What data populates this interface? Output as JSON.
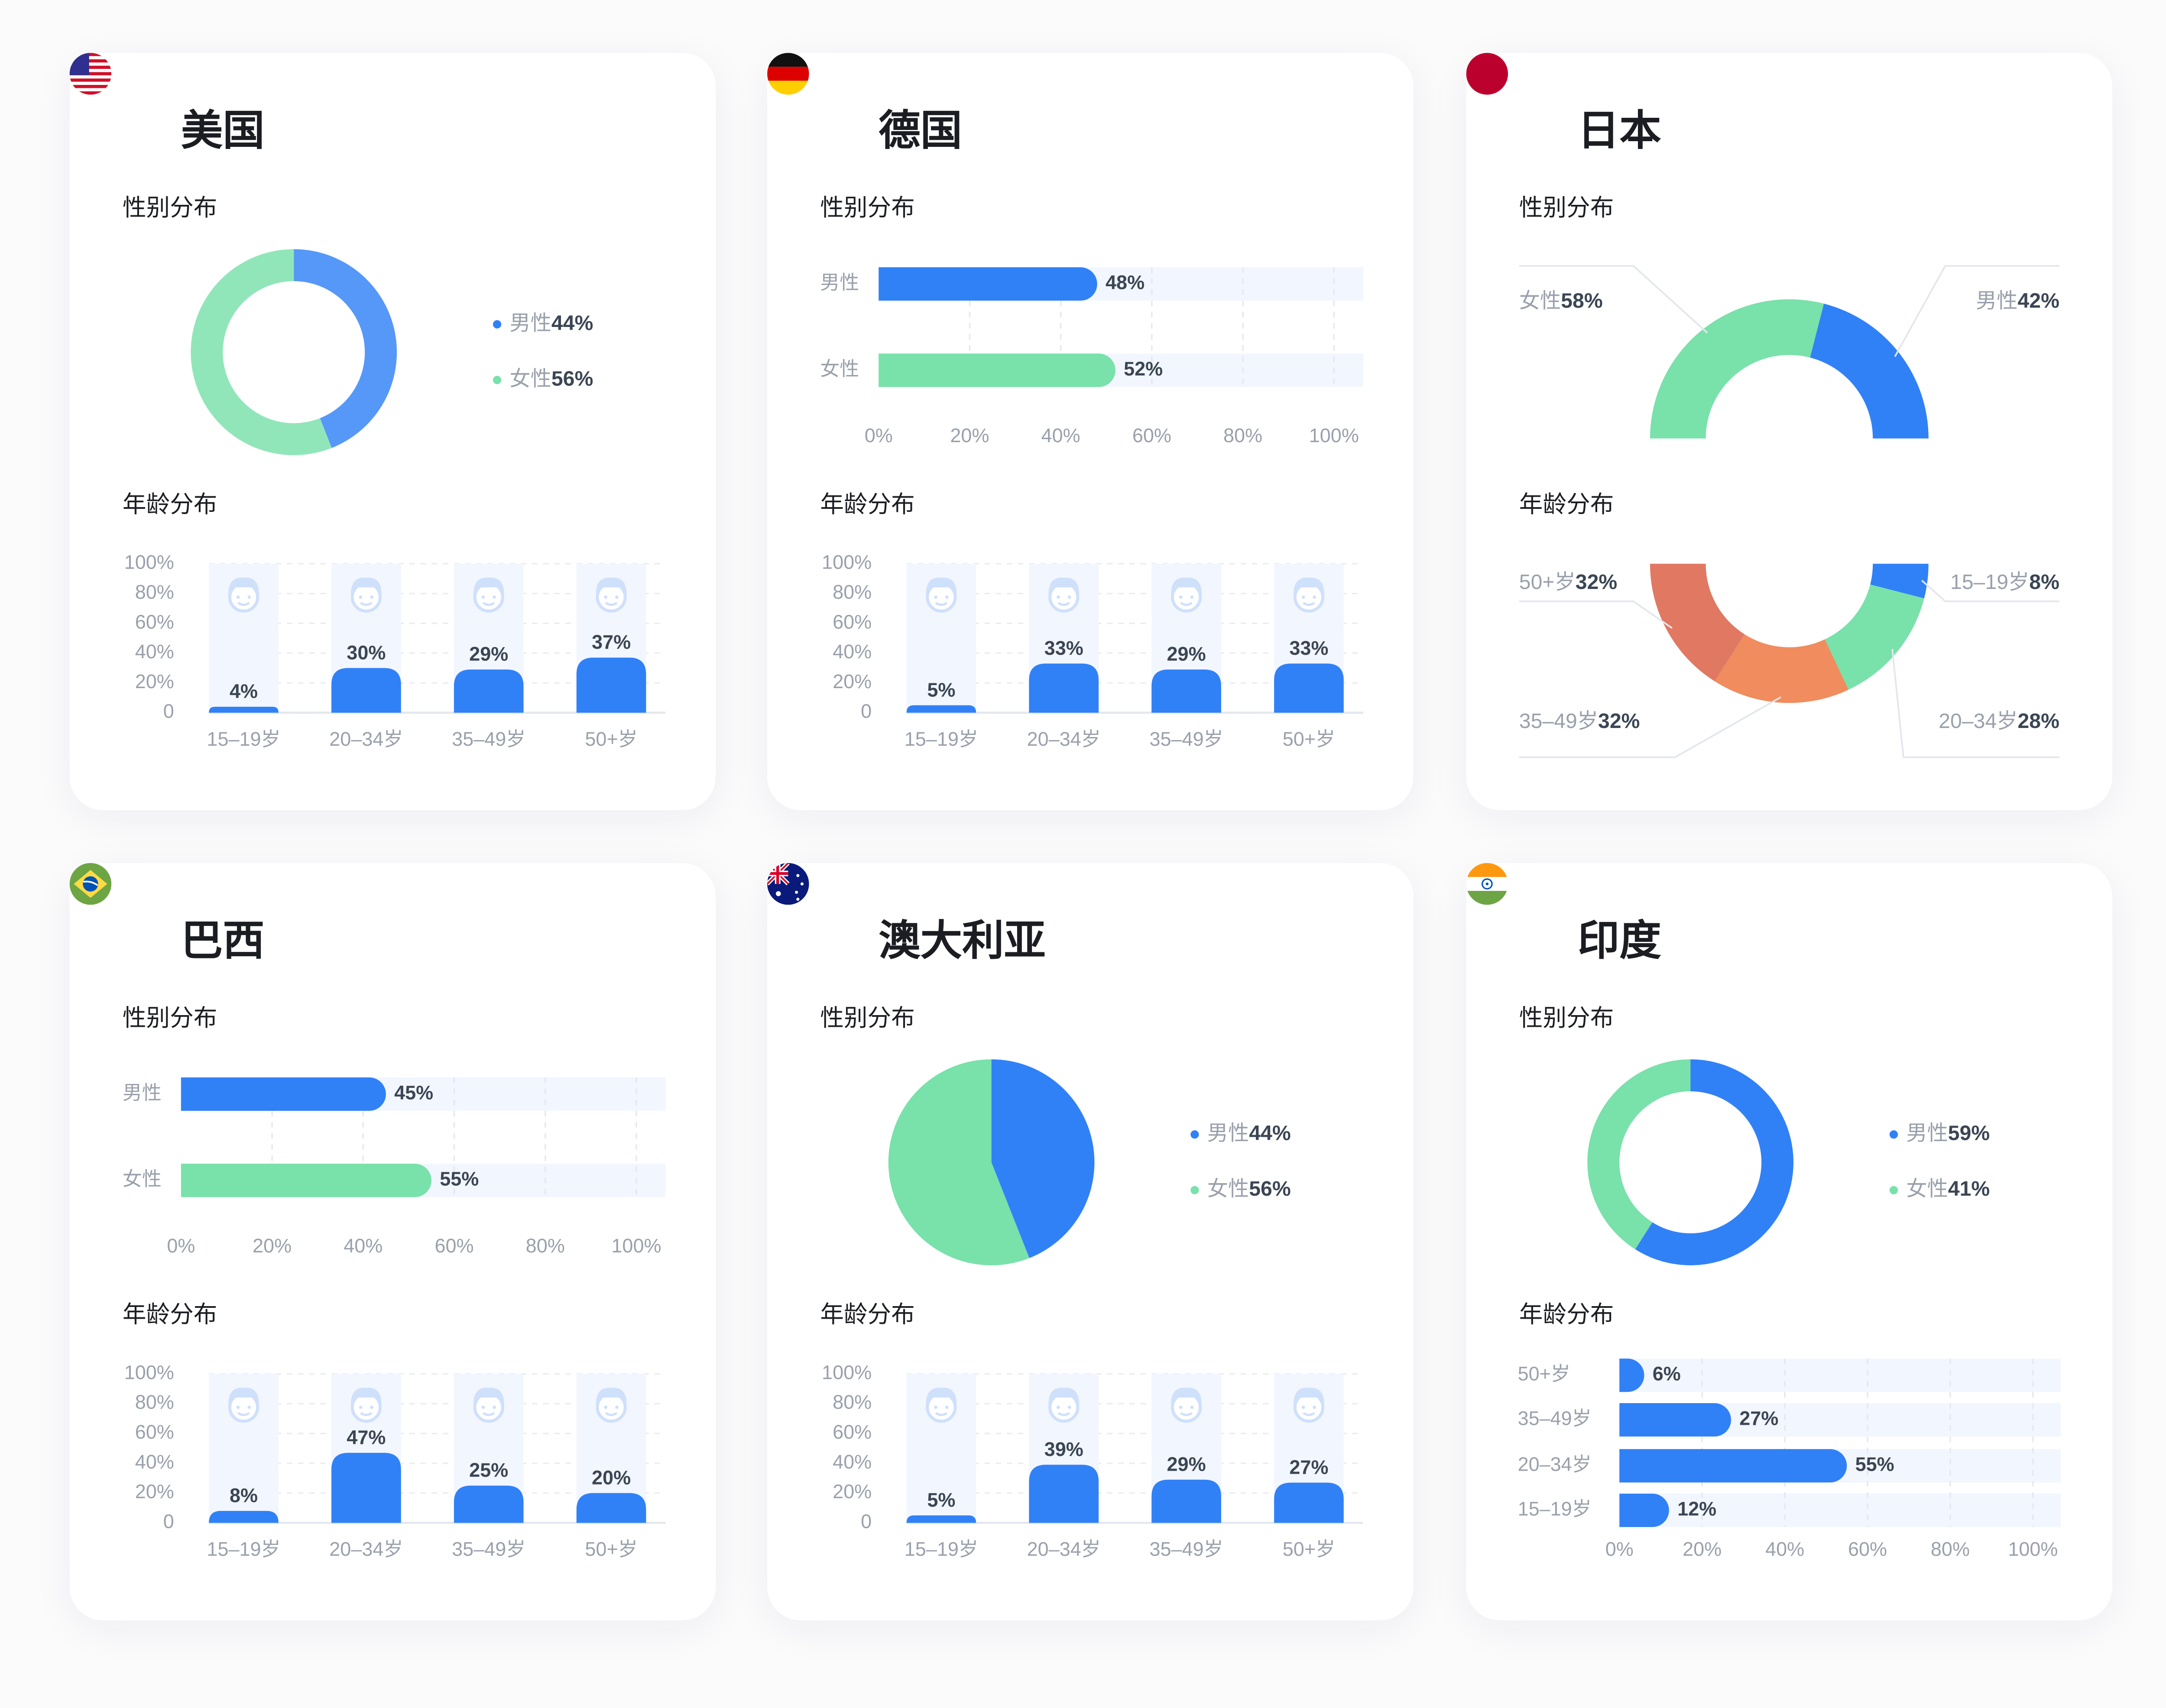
{
  "cards": [
    {
      "title": "美国",
      "flag": "us-flag"
    },
    {
      "title": "德国",
      "flag": "germany-flag"
    },
    {
      "title": "日本",
      "flag": "japan-flag"
    },
    {
      "title": "巴西",
      "flag": "brazil-flag"
    },
    {
      "title": "澳大利亚",
      "flag": "australia-flag"
    },
    {
      "title": "印度",
      "flag": "india-flag"
    }
  ],
  "colors": {
    "blue": "#3181F6",
    "green": "#79E1AA",
    "orange": "#F08C5E",
    "red": "#E07862",
    "column_bg": "#F2F6FE",
    "icon": "#CFE0FB"
  },
  "chart_data": [
    {
      "country": "美国",
      "title": "性别分布",
      "type": "donut",
      "series": [
        {
          "label": "男性",
          "value": 44,
          "color": "blue"
        },
        {
          "label": "女性",
          "value": 56,
          "color": "green"
        }
      ]
    },
    {
      "country": "美国",
      "title": "年龄分布",
      "type": "bar",
      "ylim": [
        0,
        100
      ],
      "yticks": [
        "100%",
        "80%",
        "60%",
        "40%",
        "20%",
        "0"
      ],
      "grid": true,
      "categories": [
        "15–19岁",
        "20–34岁",
        "35–49岁",
        "50+岁"
      ],
      "values": [
        4,
        30,
        29,
        37
      ],
      "icons": [
        "teen-face-icon",
        "young-adult-face-icon",
        "middle-aged-face-icon",
        "elderly-face-icon"
      ]
    },
    {
      "country": "德国",
      "title": "性别分布",
      "type": "hbar",
      "xlim": [
        0,
        100
      ],
      "xticks": [
        "0%",
        "20%",
        "40%",
        "60%",
        "80%",
        "100%"
      ],
      "grid": true,
      "series": [
        {
          "label": "男性",
          "value": 48,
          "color": "blue"
        },
        {
          "label": "女性",
          "value": 52,
          "color": "green"
        }
      ]
    },
    {
      "country": "德国",
      "title": "年龄分布",
      "type": "bar",
      "ylim": [
        0,
        100
      ],
      "yticks": [
        "100%",
        "80%",
        "60%",
        "40%",
        "20%",
        "0"
      ],
      "grid": true,
      "categories": [
        "15–19岁",
        "20–34岁",
        "35–49岁",
        "50+岁"
      ],
      "values": [
        5,
        33,
        29,
        33
      ],
      "icons": [
        "teen-face-icon",
        "young-adult-face-icon",
        "middle-aged-face-icon",
        "elderly-face-icon"
      ]
    },
    {
      "country": "日本",
      "title": "性别分布",
      "type": "semi-donut-top",
      "series": [
        {
          "label": "女性",
          "value": 58,
          "color": "green",
          "side": "left"
        },
        {
          "label": "男性",
          "value": 42,
          "color": "blue",
          "side": "right"
        }
      ]
    },
    {
      "country": "日本",
      "title": "年龄分布",
      "type": "semi-donut-bottom",
      "series": [
        {
          "label": "15–19岁",
          "value": 8,
          "color": "blue",
          "side": "right-top"
        },
        {
          "label": "20–34岁",
          "value": 28,
          "color": "green",
          "side": "right-bottom"
        },
        {
          "label": "35–49岁",
          "value": 32,
          "color": "orange",
          "side": "left-bottom"
        },
        {
          "label": "50+岁",
          "value": 32,
          "color": "red",
          "side": "left-top"
        }
      ]
    },
    {
      "country": "巴西",
      "title": "性别分布",
      "type": "hbar",
      "xlim": [
        0,
        100
      ],
      "xticks": [
        "0%",
        "20%",
        "40%",
        "60%",
        "80%",
        "100%"
      ],
      "grid": true,
      "series": [
        {
          "label": "男性",
          "value": 45,
          "color": "blue"
        },
        {
          "label": "女性",
          "value": 55,
          "color": "green"
        }
      ]
    },
    {
      "country": "巴西",
      "title": "年龄分布",
      "type": "bar",
      "ylim": [
        0,
        100
      ],
      "yticks": [
        "100%",
        "80%",
        "60%",
        "40%",
        "20%",
        "0"
      ],
      "grid": true,
      "categories": [
        "15–19岁",
        "20–34岁",
        "35–49岁",
        "50+岁"
      ],
      "values": [
        8,
        47,
        25,
        20
      ],
      "icons": [
        "teen-face-icon",
        "young-adult-face-icon",
        "middle-aged-face-icon",
        "elderly-face-icon"
      ]
    },
    {
      "country": "澳大利亚",
      "title": "性别分布",
      "type": "pie",
      "series": [
        {
          "label": "男性",
          "value": 44,
          "color": "blue"
        },
        {
          "label": "女性",
          "value": 56,
          "color": "green"
        }
      ]
    },
    {
      "country": "澳大利亚",
      "title": "年龄分布",
      "type": "bar",
      "ylim": [
        0,
        100
      ],
      "yticks": [
        "100%",
        "80%",
        "60%",
        "40%",
        "20%",
        "0"
      ],
      "grid": true,
      "categories": [
        "15–19岁",
        "20–34岁",
        "35–49岁",
        "50+岁"
      ],
      "values": [
        5,
        39,
        29,
        27
      ],
      "icons": [
        "teen-face-icon",
        "young-adult-face-icon",
        "middle-aged-face-icon",
        "elderly-face-icon"
      ]
    },
    {
      "country": "印度",
      "title": "性别分布",
      "type": "donut",
      "series": [
        {
          "label": "男性",
          "value": 59,
          "color": "blue"
        },
        {
          "label": "女性",
          "value": 41,
          "color": "green"
        }
      ]
    },
    {
      "country": "印度",
      "title": "年龄分布",
      "type": "hbar",
      "xlim": [
        0,
        100
      ],
      "xticks": [
        "0%",
        "20%",
        "40%",
        "60%",
        "80%",
        "100%"
      ],
      "grid": true,
      "series": [
        {
          "label": "50+岁",
          "value": 6,
          "color": "blue"
        },
        {
          "label": "35–49岁",
          "value": 27,
          "color": "blue"
        },
        {
          "label": "20–34岁",
          "value": 55,
          "color": "blue"
        },
        {
          "label": "15–19岁",
          "value": 12,
          "color": "blue"
        }
      ]
    }
  ]
}
